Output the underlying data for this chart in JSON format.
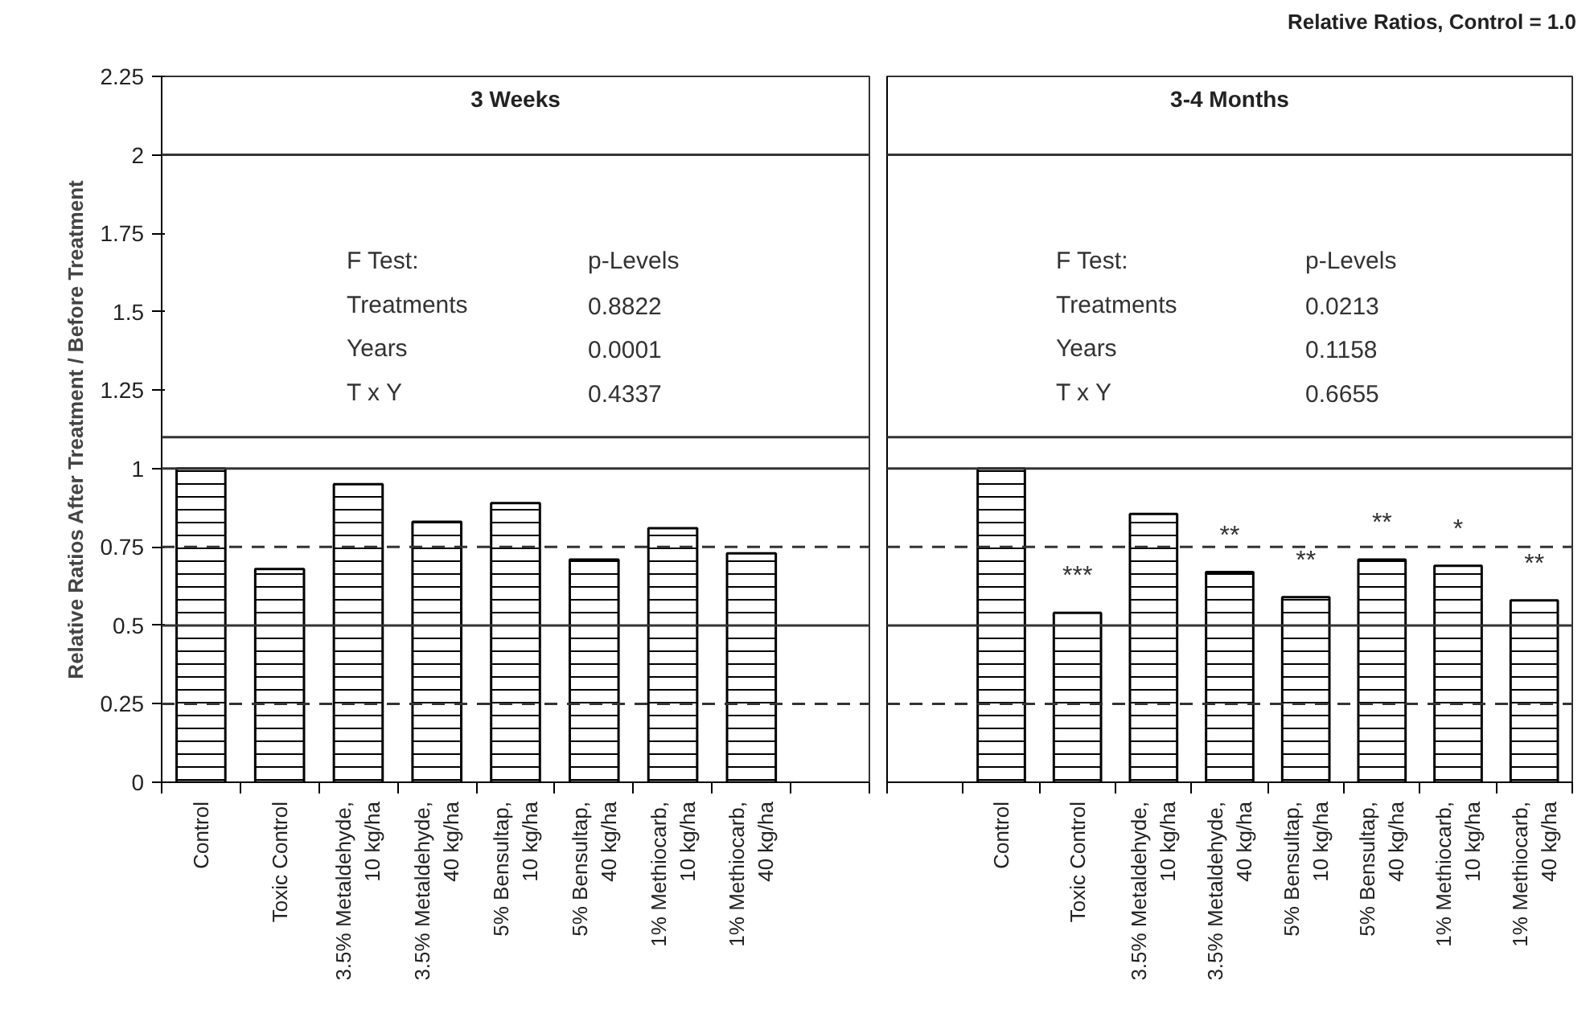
{
  "chart_data": [
    {
      "type": "bar",
      "title": "3 Weeks",
      "ylabel": "Relative Ratios After Treatment / Before Treatment",
      "categories": [
        "Control",
        "Toxic Control",
        "3.5% Metaldehyde,\n10 kg/ha",
        "3.5% Metaldehyde,\n40 kg/ha",
        "5% Bensultap,\n10 kg/ha",
        "5% Bensultap,\n40 kg/ha",
        "1% Methiocarb,\n10 kg/ha",
        "1% Methiocarb,\n40 kg/ha"
      ],
      "series": [
        {
          "color": "#000000",
          "values": [
            1.0,
            0.68,
            0.95,
            0.83,
            0.89,
            0.71,
            0.81,
            0.73
          ]
        }
      ],
      "ylim": [
        0,
        2.25
      ],
      "yticks": [
        0,
        0.25,
        0.5,
        0.75,
        1,
        1.25,
        1.5,
        1.75,
        2,
        2.25
      ],
      "grid": false,
      "ref_lines": [
        {
          "axis": "y",
          "value": 0.25,
          "line_style": "dashed"
        },
        {
          "axis": "y",
          "value": 0.5,
          "line_style": "solid"
        },
        {
          "axis": "y",
          "value": 0.75,
          "line_style": "dashed"
        },
        {
          "axis": "y",
          "value": 1,
          "line_style": "solid"
        },
        {
          "axis": "y",
          "value": 1.1,
          "line_style": "solid"
        },
        {
          "axis": "y",
          "value": 2,
          "line_style": "solid"
        }
      ],
      "annotations": [
        "F Test:",
        "p-Levels",
        "Treatments",
        "0.8822",
        "Years",
        "0.0001",
        "T x Y",
        "0.4337"
      ]
    },
    {
      "type": "bar",
      "title": "3-4 Months",
      "subtitle": "Relative Ratios, Control = 1.0",
      "categories": [
        "Control",
        "Toxic Control",
        "3.5% Metaldehyde,\n10 kg/ha",
        "3.5% Metaldehyde,\n40 kg/ha",
        "5% Bensultap,\n10 kg/ha",
        "5% Bensultap,\n40 kg/ha",
        "1% Methiocarb,\n10 kg/ha",
        "1% Methiocarb,\n40 kg/ha"
      ],
      "series": [
        {
          "color": "#000000",
          "values": [
            1.0,
            0.54,
            0.855,
            0.67,
            0.59,
            0.71,
            0.69,
            0.58
          ]
        }
      ],
      "ylim": [
        0,
        2.25
      ],
      "yticks": [
        0,
        0.25,
        0.5,
        0.75,
        1,
        1.25,
        1.5,
        1.75,
        2,
        2.25
      ],
      "grid": false,
      "tick_labels": "x",
      "ref_lines": [
        {
          "axis": "y",
          "value": 0.25,
          "line_style": "dashed"
        },
        {
          "axis": "y",
          "value": 0.5,
          "line_style": "solid"
        },
        {
          "axis": "y",
          "value": 0.75,
          "line_style": "dashed"
        },
        {
          "axis": "y",
          "value": 1,
          "line_style": "solid"
        },
        {
          "axis": "y",
          "value": 1.1,
          "line_style": "solid"
        },
        {
          "axis": "y",
          "value": 2,
          "line_style": "solid"
        }
      ],
      "annotations": [
        "F Test:",
        "p-Levels",
        "Treatments",
        "0.0213",
        "Years",
        "0.1158",
        "T x Y",
        "0.6655",
        {
          "text": "***",
          "x": "Toxic Control",
          "y": 0.54
        },
        {
          "text": "**",
          "x": "3.5% Metaldehyde,\n40 kg/ha",
          "y": 0.67
        },
        {
          "text": "**",
          "x": "5% Bensultap,\n10 kg/ha",
          "y": 0.59
        },
        {
          "text": "**",
          "x": "5% Bensultap,\n40 kg/ha",
          "y": 0.71
        },
        {
          "text": "*",
          "x": "1% Methiocarb,\n10 kg/ha",
          "y": 0.69
        },
        {
          "text": "**",
          "x": "1% Methiocarb,\n40 kg/ha",
          "y": 0.58
        }
      ]
    }
  ]
}
